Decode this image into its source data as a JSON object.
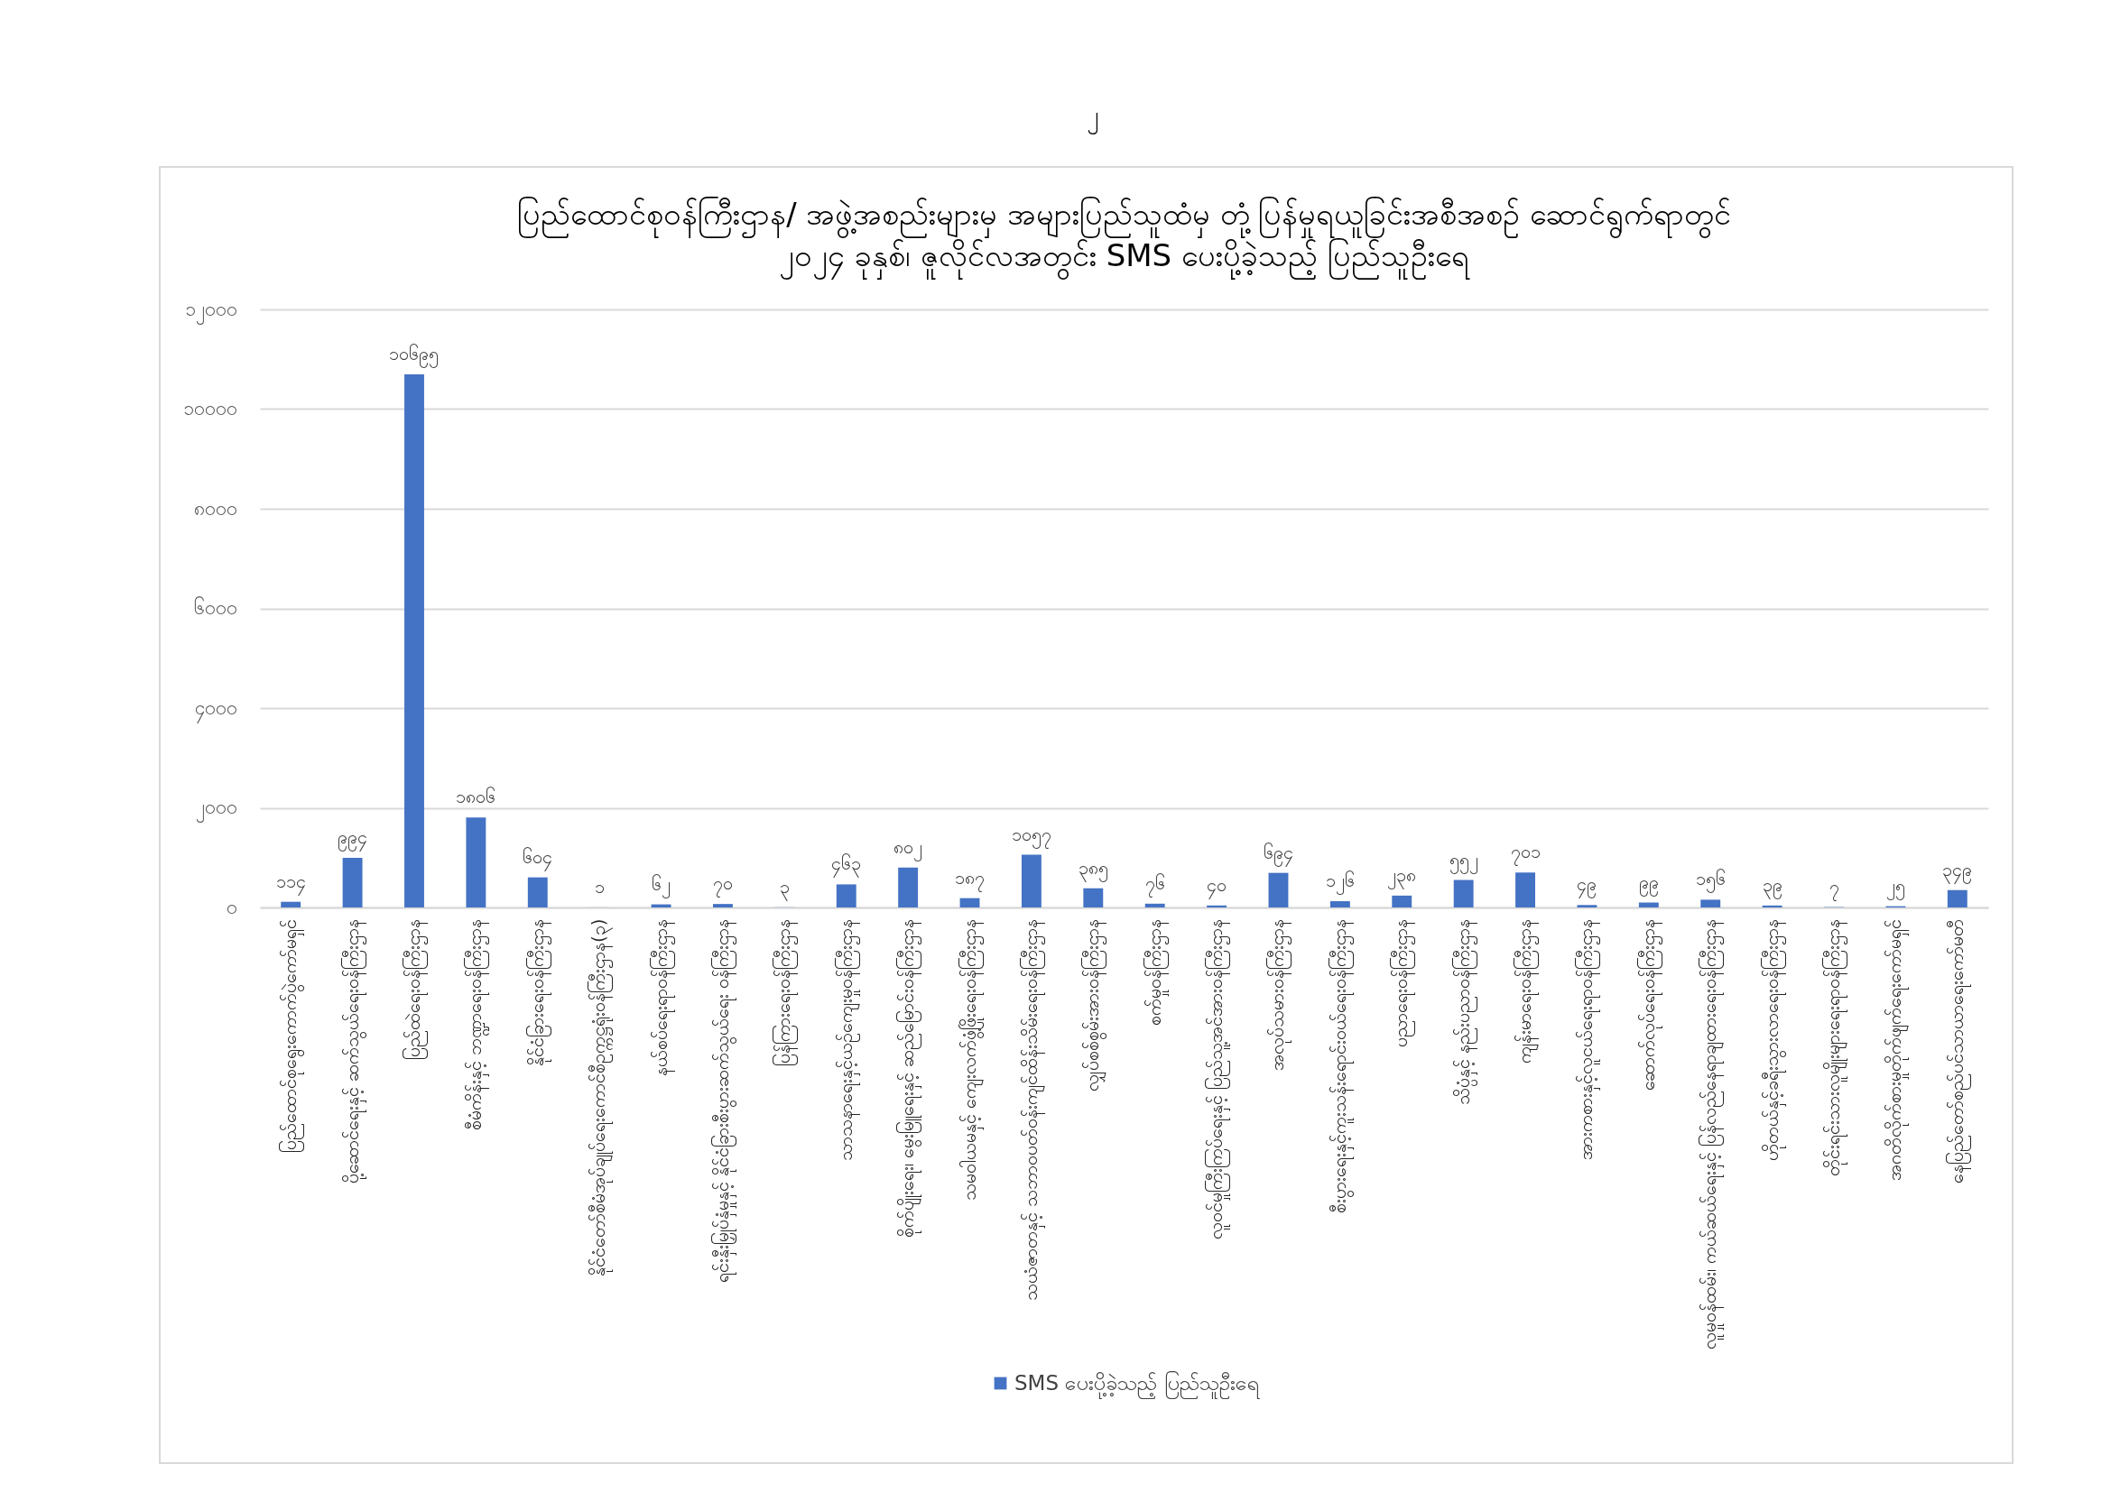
{
  "chart_data": {
    "type": "bar",
    "title": "ပြည်ထောင်စုဝန်ကြီးဌာန/ အဖွဲ့အစည်းများမှ အများပြည်သူထံမှ တုံ့ပြန်မှုရယူခြင်းအစီအစဉ် ဆောင်ရွက်ရာတွင်",
    "subtitle": "၂၀၂၄ ခုနှစ်၊ ဇူလိုင်လအတွင်း SMS ပေးပို့ခဲ့သည့် ပြည်သူဦးရေ",
    "categories": [
      "ပြည်ထောင်စုရွေးကောက်ပွဲကော်မရှင်",
      "ပို့ဆောင်ရေးနှင့် ဆက်သွယ်ရေးဝန်ကြီးဌာန",
      "ပြည်ထဲရေးဝန်ကြီးဌာန",
      "စီမံကိန်းနှင့် ဘဏ္ဍာရေးဝန်ကြီးဌာန",
      "နိုင်ငံခြားရေးဝန်ကြီးဌာန",
      "နိုင်ငံတော်စီမံအုပ်ချုပ်ရေးကောင်စီဥက္ကဋ္ဌရုံးဝန်ကြီးဌာန(၃)",
      "နယ်စပ်ရေးရာဝန်ကြီးဌာန",
      "ရင်းနှီးမြှုပ်နှံမှုနှင့် နိုင်ငံခြားစီးပွားဆက်သွယ်ရေး ဝန်ကြီးဌာန",
      "ပြန်ကြားရေးဝန်ကြီးဌာန",
      "သာသနာရေးနှင့်ယဉ်ကျေးမှုဝန်ကြီးဌာန",
      "စိုက်ပျိုးရေး၊ မွေးမြူရေးနှင့် ဆည်မြောင်းဝန်ကြီးဌာန",
      "သမဝါယမနှင့် ကျေးလက်ဖွံ့ဖြိုးရေးဝန်ကြီးဌာန",
      "သယံဇာတနှင့် သဘာဝပတ်ဝန်းကျင်ထိန်းသိမ်းရေးဝန်ကြီးဌာန",
      "လျှပ်စစ်စွမ်းအားဝန်ကြီးဌာန",
      "စက်မှုဝန်ကြီးဌာန",
      "လူဝင်မှုကြီးကြပ်ရေးနှင့် ပြည်သူ့အင်အားဝန်ကြီးဌာန",
      "အလုပ်သမားဝန်ကြီးဌာန",
      "စီးပွားရေးနှင့်ကူးသန်းရောင်းဝယ်ရေးဝန်ကြီးဌာန",
      "ပညာရေးဝန်ကြီးဌာန",
      "သိပ္ပံနှင့် နည်းပညာဝန်ကြီးဌာန",
      "ကျန်းမာရေးဝန်ကြီးဌာန",
      "အားကစားနှင့်လူငယ်ရေးရာဝန်ကြီးဌာန",
      "ဆောက်လုပ်ရေးဝန်ကြီးဌာန",
      "လူမှုဝန်ထမ်း၊ ကယ်ဆယ်ရေးနှင့် ပြန်လည်နေရာချထားရေးဝန်ကြီးဌာန",
      "ဟိုတယ်နှင့်ခရီးသွားလာရေးဝန်ကြီးဌာန",
      "တိုင်းရင်းသားလူမျိုးများရေးရာဝန်ကြီးဌာန",
      "အဂတိလိုက်စားမှုတိုက်ဖျက်ရေးကော်မရှင်",
      "နေပြည်တော်စည်ပင်သာယာရေးကော်မတီ"
    ],
    "series": [
      {
        "name": "SMS ပေးပို့ခဲ့သည့် ပြည်သူဦးရေ",
        "color": "#4472c4",
        "values": [
          114,
          994,
          10695,
          1806,
          604,
          1,
          62,
          70,
          3,
          463,
          802,
          187,
          1057,
          385,
          76,
          40,
          694,
          126,
          238,
          552,
          701,
          49,
          99,
          156,
          39,
          7,
          25,
          349
        ],
        "value_labels": [
          "၁၁၄",
          "၉၉၄",
          "၁၀၆၉၅",
          "၁၈၀၆",
          "၆၀၄",
          "၁",
          "၆၂",
          "၇၀",
          "၃",
          "၄၆၃",
          "၈၀၂",
          "၁၈၇",
          "၁၀၅၇",
          "၃၈၅",
          "၇၆",
          "၄၀",
          "၆၉၄",
          "၁၂၆",
          "၂၃၈",
          "၅၅၂",
          "၇၀၁",
          "၄၉",
          "၉၉",
          "၁၅၆",
          "၃၉",
          "၇",
          "၂၅",
          "၃၄၉"
        ]
      }
    ],
    "ylim": [
      0,
      12000
    ],
    "yticks": [
      {
        "value": 0,
        "label": "၀"
      },
      {
        "value": 2000,
        "label": "၂၀၀၀"
      },
      {
        "value": 4000,
        "label": "၄၀၀၀"
      },
      {
        "value": 6000,
        "label": "၆၀၀၀"
      },
      {
        "value": 8000,
        "label": "၈၀၀၀"
      },
      {
        "value": 10000,
        "label": "၁၀၀၀၀"
      },
      {
        "value": 12000,
        "label": "၁၂၀၀၀"
      }
    ],
    "grid": "y",
    "legend": "bottom",
    "annotations": [
      "၂"
    ]
  }
}
